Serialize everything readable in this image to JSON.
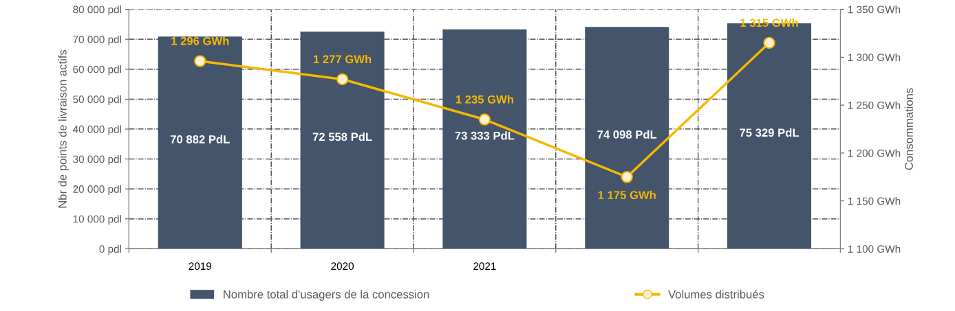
{
  "chart_data": {
    "type": "bar",
    "ylabel": "Nbr de points de livraison actifs",
    "y2label": "Consommations",
    "categories": [
      "2019",
      "2020",
      "2021",
      null,
      null
    ],
    "series": [
      {
        "name": "Nombre total d'usagers de la concession",
        "color": "#44546a",
        "values": [
          70882,
          72558,
          73333,
          74098,
          75329
        ],
        "value_labels": [
          "70 882 PdL",
          "72 558 PdL",
          "73 333 PdL",
          "74 098 PdL",
          "75 329 PdL"
        ]
      },
      {
        "name": "Volumes distribués",
        "type": "line",
        "axis": "y2",
        "color": "#f5b800",
        "marker": "circle",
        "values": [
          1296,
          1277,
          1235,
          1175,
          1315
        ],
        "value_labels": [
          "1 296 GWh",
          "1 277 GWh",
          "1 235 GWh",
          "1 175 GWh",
          "1 315 GWh"
        ]
      }
    ],
    "ylim": [
      0,
      80000
    ],
    "yticks": [
      {
        "value": 0,
        "label": "0 pdl"
      },
      {
        "value": 10000,
        "label": "10 000 pdl"
      },
      {
        "value": 20000,
        "label": "20 000 pdl"
      },
      {
        "value": 30000,
        "label": "30 000 pdl"
      },
      {
        "value": 40000,
        "label": "40 000 pdl"
      },
      {
        "value": 50000,
        "label": "50 000 pdl"
      },
      {
        "value": 60000,
        "label": "60 000 pdl"
      },
      {
        "value": 70000,
        "label": "70 000 pdl"
      },
      {
        "value": 80000,
        "label": "80 000 pdl"
      }
    ],
    "y2lim": [
      1100,
      1350
    ],
    "y2ticks": [
      {
        "value": 1100,
        "label": "1 100 GWh"
      },
      {
        "value": 1150,
        "label": "1 150 GWh"
      },
      {
        "value": 1200,
        "label": "1 200 GWh"
      },
      {
        "value": 1250,
        "label": "1 250 GWh"
      },
      {
        "value": 1300,
        "label": "1 300 GWh"
      },
      {
        "value": 1350,
        "label": "1 350 GWh"
      }
    ],
    "grid": true,
    "legend": "bottom"
  }
}
